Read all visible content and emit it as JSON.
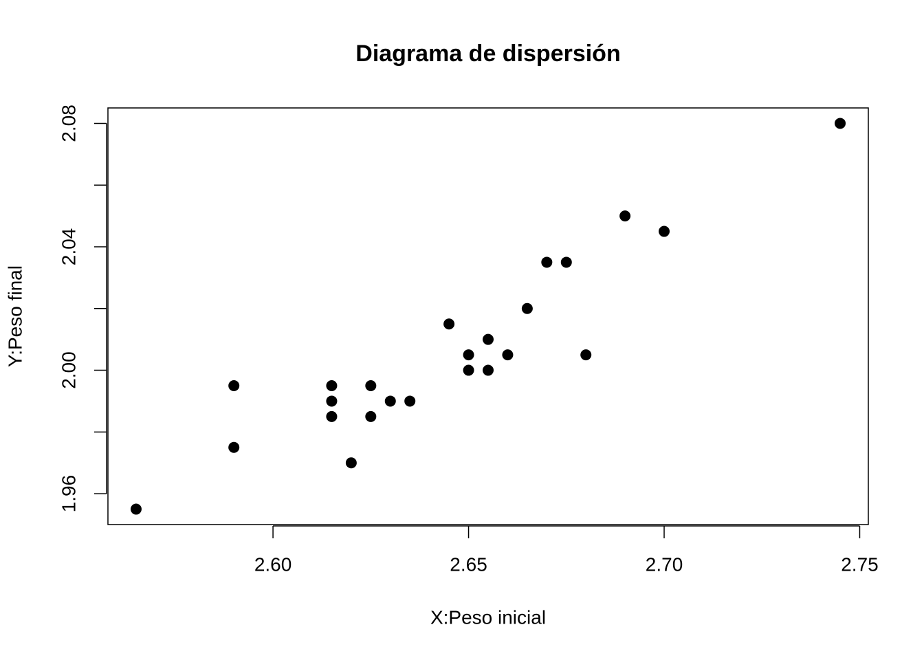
{
  "chart_data": {
    "type": "scatter",
    "title": "Diagrama de dispersión",
    "x_label": "X:Peso inicial",
    "y_label": "Y:Peso final",
    "color": "#000000",
    "series": [
      {
        "x": [
          2.565,
          2.59,
          2.59,
          2.615,
          2.615,
          2.615,
          2.62,
          2.625,
          2.625,
          2.63,
          2.635,
          2.645,
          2.65,
          2.65,
          2.655,
          2.655,
          2.66,
          2.665,
          2.67,
          2.675,
          2.68,
          2.69,
          2.7,
          2.745
        ],
        "values": [
          1.955,
          1.995,
          1.975,
          1.995,
          1.99,
          1.985,
          1.97,
          1.995,
          1.985,
          1.99,
          1.99,
          2.015,
          2.005,
          2.0,
          2.01,
          2.0,
          2.005,
          2.02,
          2.035,
          2.035,
          2.005,
          2.05,
          2.045,
          2.08
        ]
      }
    ],
    "xlim": [
      2.5578,
      2.7522
    ],
    "ylim": [
      1.95,
      2.085
    ],
    "xticks": [
      {
        "value": 2.6,
        "label": "2.60"
      },
      {
        "value": 2.65,
        "label": "2.65"
      },
      {
        "value": 2.7,
        "label": "2.70"
      },
      {
        "value": 2.75,
        "label": "2.75"
      }
    ],
    "yticks": [
      {
        "value": 1.96,
        "label": "1.96"
      },
      {
        "value": 1.98,
        "label": null
      },
      {
        "value": 2.0,
        "label": "2.00"
      },
      {
        "value": 2.02,
        "label": null
      },
      {
        "value": 2.04,
        "label": "2.04"
      },
      {
        "value": 2.06,
        "label": null
      },
      {
        "value": 2.08,
        "label": "2.08"
      }
    ]
  }
}
